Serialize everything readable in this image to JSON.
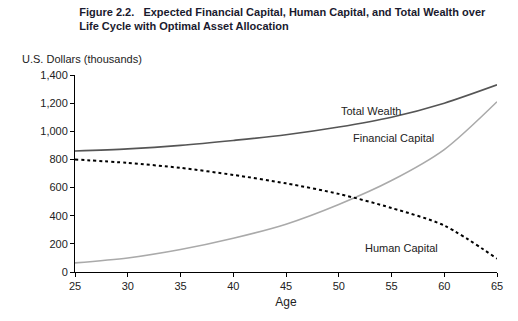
{
  "chart_data": {
    "type": "line",
    "title": "Figure 2.2.   Expected Financial Capital, Human Capital, and Total Wealth over\nLife Cycle with Optimal Asset Allocation",
    "y_label": "U.S. Dollars (thousands)",
    "x_label": "Age",
    "x": [
      25,
      30,
      35,
      40,
      45,
      50,
      55,
      60,
      65
    ],
    "series": [
      {
        "name": "Total Wealth",
        "color": "#555555",
        "line_style": "solid",
        "values": [
          860,
          875,
          900,
          935,
          975,
          1030,
          1100,
          1200,
          1330
        ]
      },
      {
        "name": "Financial Capital",
        "color": "#aaaaaa",
        "line_style": "solid",
        "values": [
          65,
          100,
          160,
          240,
          340,
          480,
          650,
          870,
          1210
        ]
      },
      {
        "name": "Human Capital",
        "color": "#000000",
        "line_style": "dotted",
        "values": [
          800,
          775,
          740,
          690,
          630,
          555,
          455,
          330,
          95
        ]
      }
    ],
    "xlim": [
      25,
      65
    ],
    "xticks": [
      25,
      30,
      35,
      40,
      45,
      50,
      55,
      60,
      65
    ],
    "ylim": [
      0,
      1400
    ],
    "yticks": [
      0,
      200,
      400,
      600,
      800,
      {
        "value": 1000,
        "label": "1,000"
      },
      {
        "value": 1200,
        "label": "1,200"
      },
      {
        "value": 1400,
        "label": "1,400"
      }
    ],
    "grid": false
  }
}
